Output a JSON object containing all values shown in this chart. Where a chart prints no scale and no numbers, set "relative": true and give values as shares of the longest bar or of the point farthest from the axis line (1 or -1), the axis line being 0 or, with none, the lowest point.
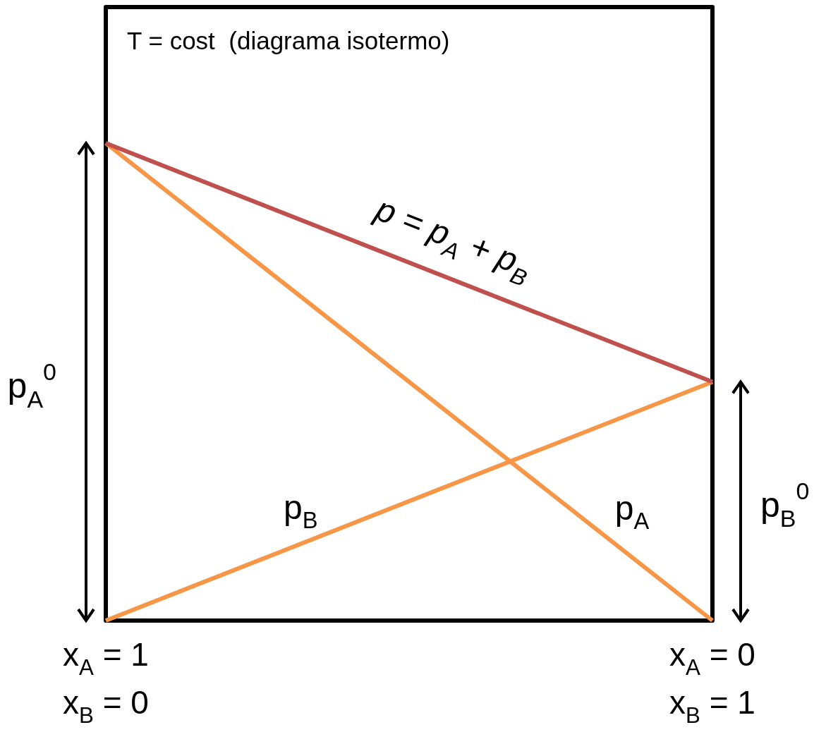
{
  "chart_data": {
    "type": "line",
    "title": "T = cost  (diagrama isotermo)",
    "categories": [
      "x$_{A}$ = 1\nx$_{B}$ = 0",
      "x$_{A}$ = 0\nx$_{B}$ = 1"
    ],
    "tick_labels": "x",
    "relative": true,
    "series": [
      {
        "name": "p = p$_{A}$ + p$_{B}$",
        "color": "#c0504d",
        "values": [
          1,
          0.5
        ]
      },
      {
        "name": "p$_{A}$",
        "color": "#f79646",
        "values": [
          1,
          0
        ]
      },
      {
        "name": "p$_{B}$",
        "color": "#f79646",
        "values": [
          0,
          0.5
        ]
      }
    ],
    "annotations": [
      "p$_{A}$$^{0}$",
      "p$_{B}$$^{0}$"
    ]
  }
}
